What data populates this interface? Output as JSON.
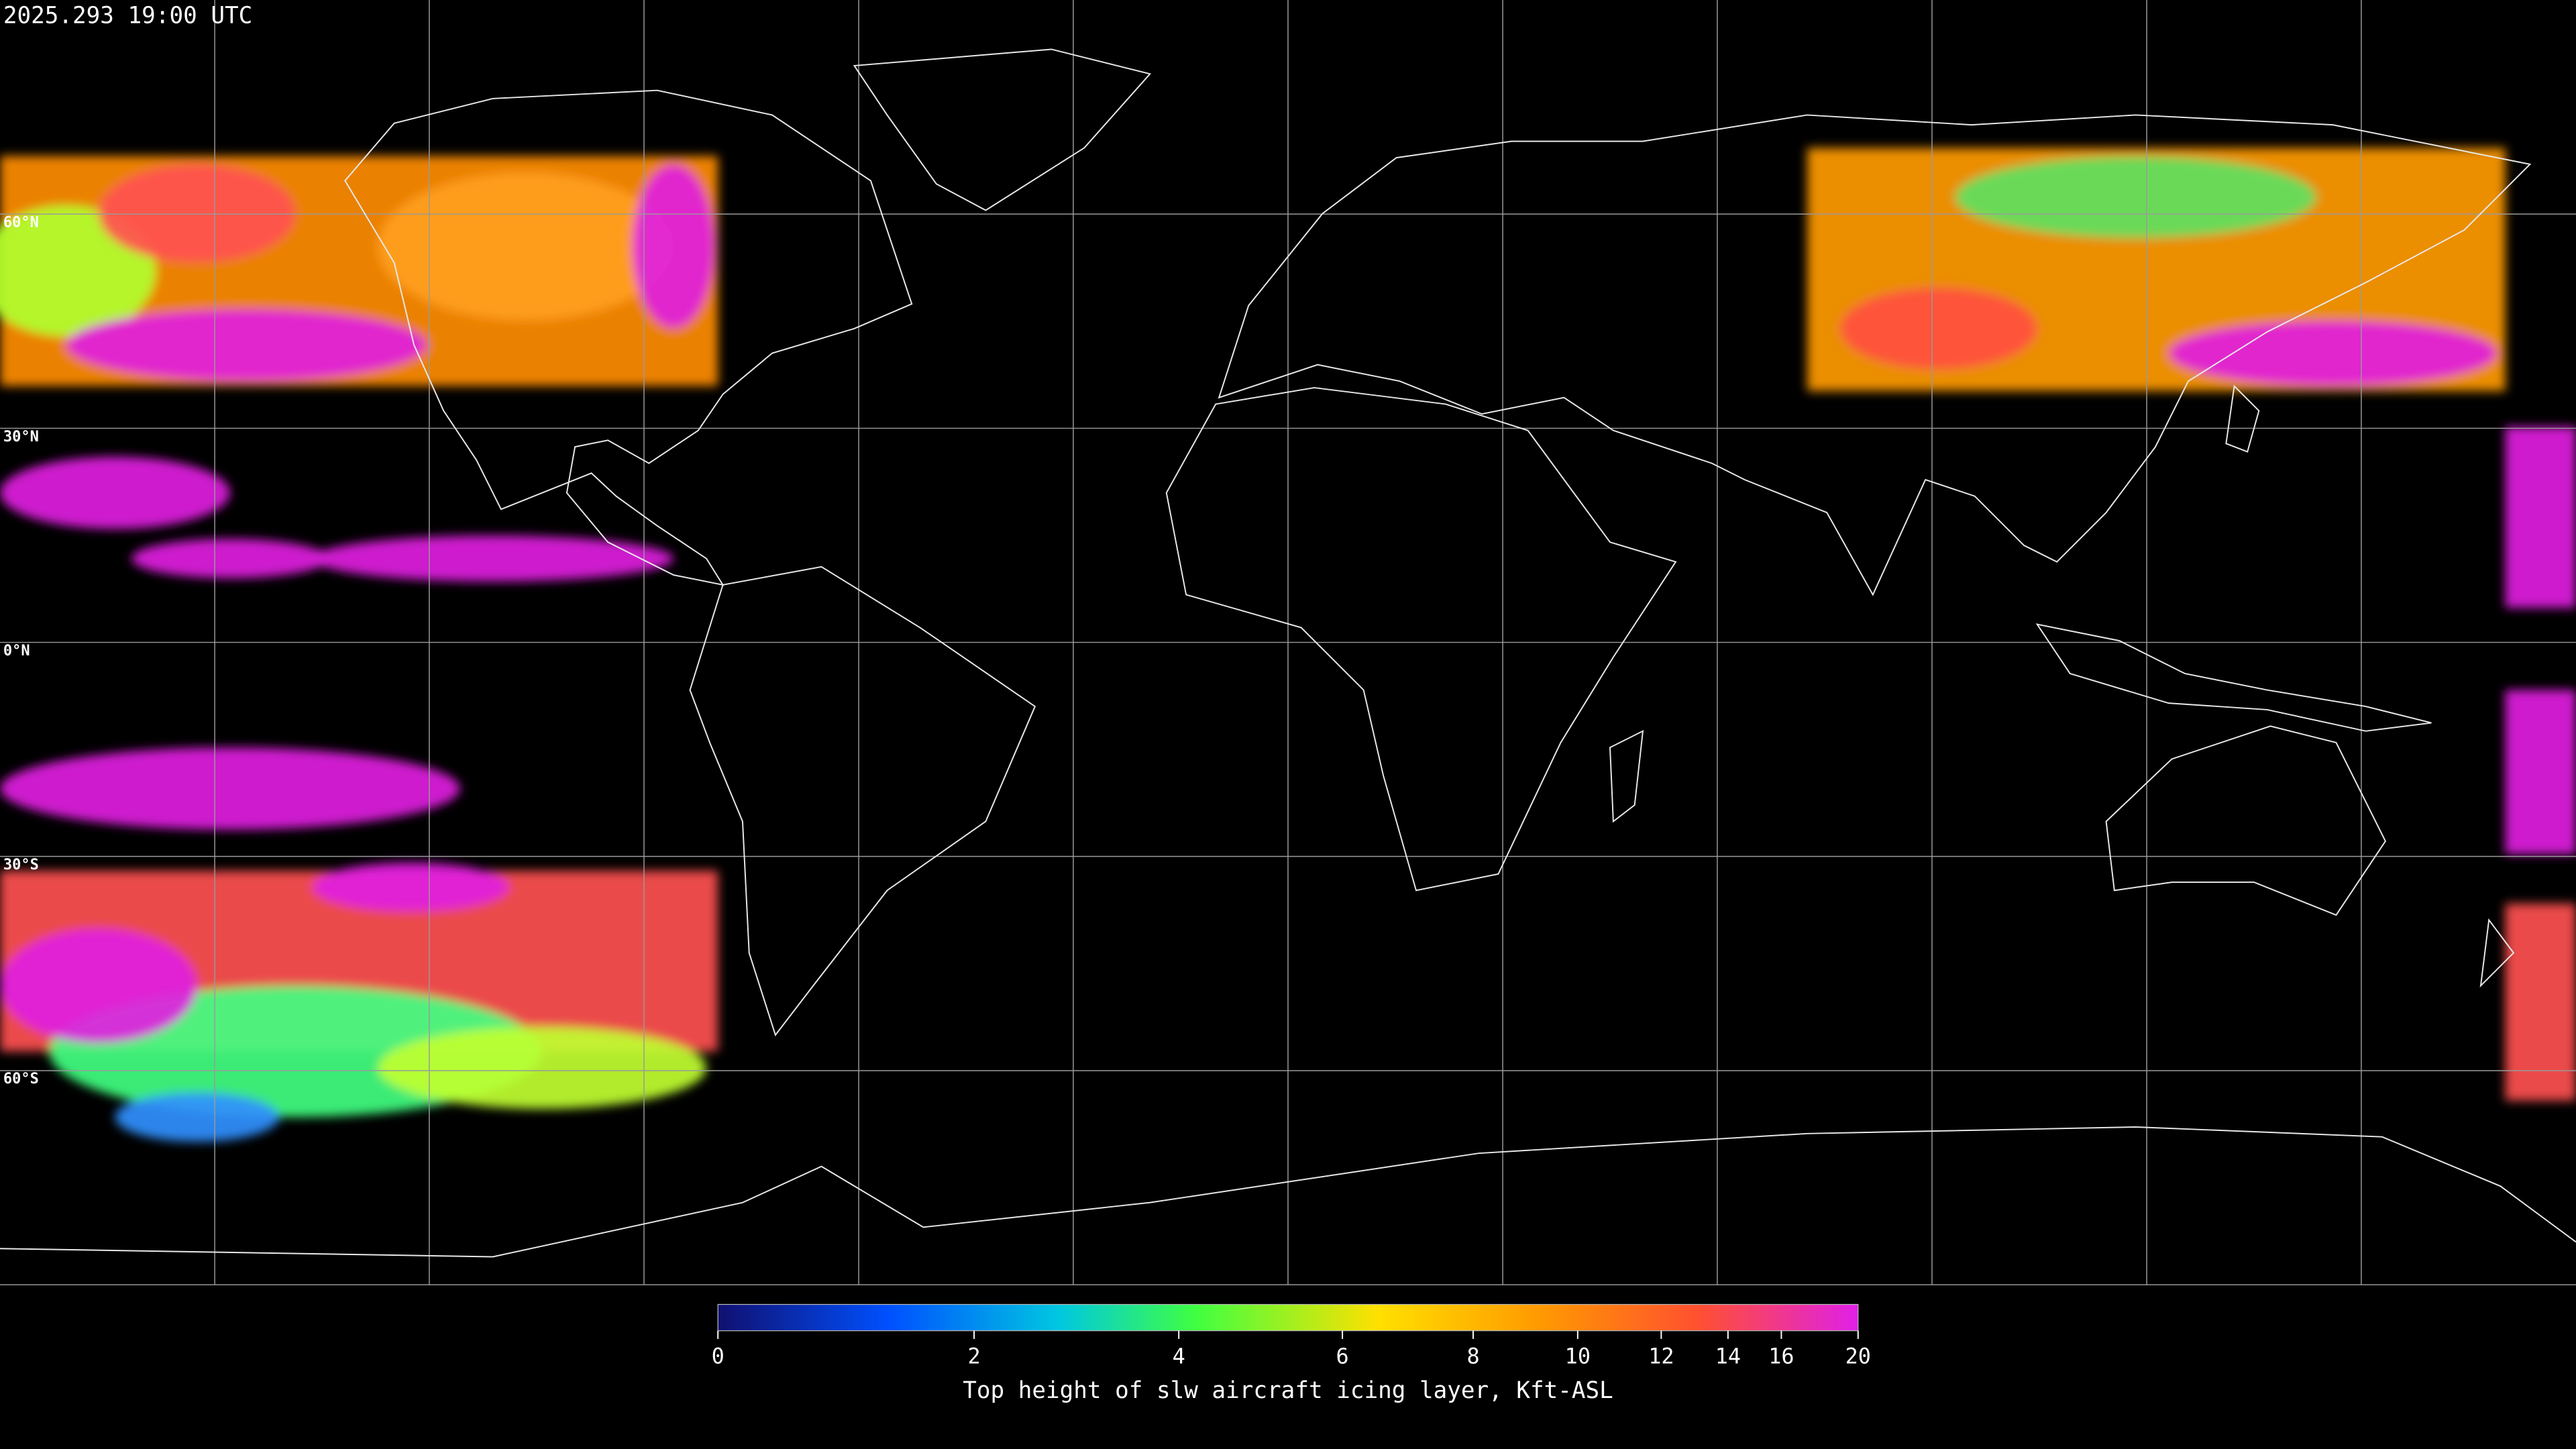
{
  "header": {
    "timestamp": "2025.293 19:00 UTC"
  },
  "map": {
    "lat_labels": [
      "60°N",
      "30°N",
      "0°N",
      "30°S",
      "60°S"
    ]
  },
  "colorbar": {
    "label": "Top height of slw aircraft icing layer, Kft-ASL",
    "range": [
      0,
      20
    ],
    "ticks": [
      0,
      2,
      4,
      6,
      8,
      10,
      12,
      14,
      16,
      20
    ]
  }
}
